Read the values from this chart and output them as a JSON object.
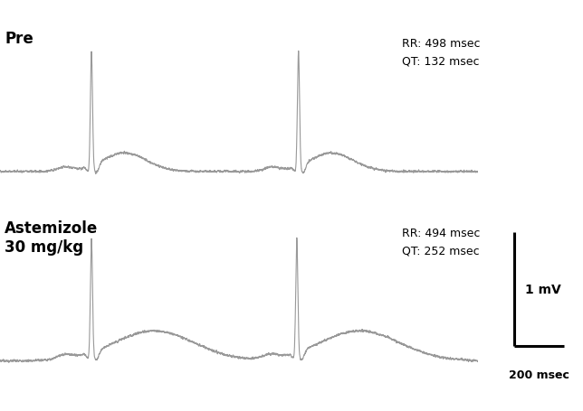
{
  "background_color": "#ffffff",
  "pre_label": "Pre",
  "post_label": "Astemizole\n30 mg/kg",
  "pre_annotations": "RR: 498 msec\nQT: 132 msec",
  "post_annotations": "RR: 494 msec\nQT: 252 msec",
  "scale_bar_voltage": "1 mV",
  "scale_bar_time": "200 msec",
  "ecg_color": "#999999",
  "text_color": "#000000",
  "line_width": 0.8,
  "pre_rr": 0.498,
  "pre_qt": 0.132,
  "post_rr": 0.494,
  "post_qt": 0.252
}
